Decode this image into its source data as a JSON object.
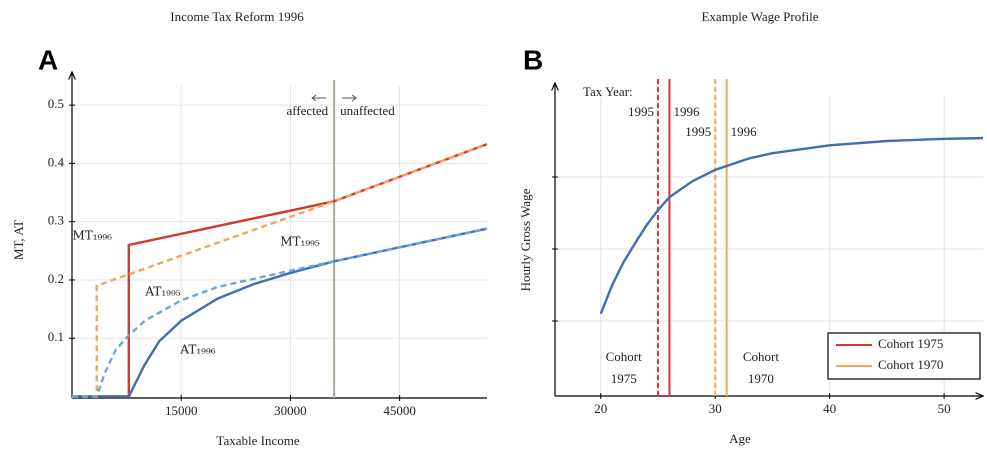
{
  "chart_data": [
    {
      "type": "line",
      "panel": "A",
      "title": "Income Tax Reform 1996",
      "xlabel": "Taxable Income",
      "ylabel": "MT, AT",
      "xlim": [
        0,
        57000
      ],
      "ylim": [
        0,
        0.55
      ],
      "xticks": [
        15000,
        30000,
        45000
      ],
      "yticks": [
        0.1,
        0.2,
        0.3,
        0.4,
        0.5
      ],
      "grid": true,
      "series": [
        {
          "name": "MT₁₉₉₆",
          "color": "#d03a2f",
          "style": "solid",
          "x": [
            0,
            7800,
            7800,
            36000,
            57000
          ],
          "values": [
            0,
            0,
            0.26,
            0.335,
            0.433
          ]
        },
        {
          "name": "AT₁₉₉₆",
          "color": "#3f6fb0",
          "style": "solid",
          "x": [
            0,
            7800,
            9000,
            10000,
            12000,
            15000,
            20000,
            25000,
            30000,
            36000,
            45000,
            57000
          ],
          "values": [
            0,
            0,
            0.03,
            0.055,
            0.095,
            0.13,
            0.168,
            0.193,
            0.212,
            0.232,
            0.256,
            0.288
          ]
        },
        {
          "name": "MT₁₉₉₅",
          "color": "#f6a45a",
          "style": "dashed",
          "x": [
            0,
            3400,
            3400,
            36000,
            57000
          ],
          "values": [
            0,
            0,
            0.19,
            0.335,
            0.433
          ]
        },
        {
          "name": "AT₁₉₉₅",
          "color": "#6aa6d6",
          "style": "dashed",
          "x": [
            0,
            3400,
            4500,
            6000,
            7800,
            10000,
            15000,
            20000,
            30000,
            36000,
            45000,
            57000
          ],
          "values": [
            0,
            0,
            0.04,
            0.08,
            0.105,
            0.13,
            0.165,
            0.188,
            0.216,
            0.232,
            0.256,
            0.288
          ]
        }
      ],
      "vline": {
        "x": 36000,
        "color": "#a8a896",
        "left_label": "affected",
        "right_label": "unaffected"
      }
    },
    {
      "type": "line",
      "panel": "B",
      "title": "Example Wage Profile",
      "xlabel": "Age",
      "ylabel": "Hourly Gross Wage",
      "xlim": [
        16,
        53.4
      ],
      "ylim": [
        0,
        4.25
      ],
      "xticks": [
        20,
        30,
        40,
        50
      ],
      "yticks": [
        1,
        2,
        3
      ],
      "grid": true,
      "legend": "lower right",
      "series": [
        {
          "color": "#3f6fb0",
          "style": "solid",
          "x": [
            20,
            21,
            22,
            23,
            24,
            25,
            26,
            28,
            30,
            33,
            35,
            40,
            45,
            50,
            53.4
          ],
          "values": [
            1.1,
            1.5,
            1.82,
            2.08,
            2.33,
            2.54,
            2.72,
            2.94,
            3.1,
            3.26,
            3.33,
            3.44,
            3.5,
            3.53,
            3.54
          ]
        }
      ],
      "tax_year_label": "Tax Year:",
      "cohorts": [
        {
          "name": "Cohort 1975",
          "plot_label": [
            "Cohort",
            "1975"
          ],
          "color": "#d03a2f",
          "tax_years": [
            {
              "x": 25,
              "label": "1995",
              "style": "dashed"
            },
            {
              "x": 26,
              "label": "1996",
              "style": "solid"
            }
          ]
        },
        {
          "name": "Cohort 1970",
          "plot_label": [
            "Cohort",
            "1970"
          ],
          "color": "#f6a45a",
          "tax_years": [
            {
              "x": 30,
              "label": "1995",
              "style": "dashed"
            },
            {
              "x": 31,
              "label": "1996",
              "style": "solid"
            }
          ]
        }
      ]
    }
  ]
}
